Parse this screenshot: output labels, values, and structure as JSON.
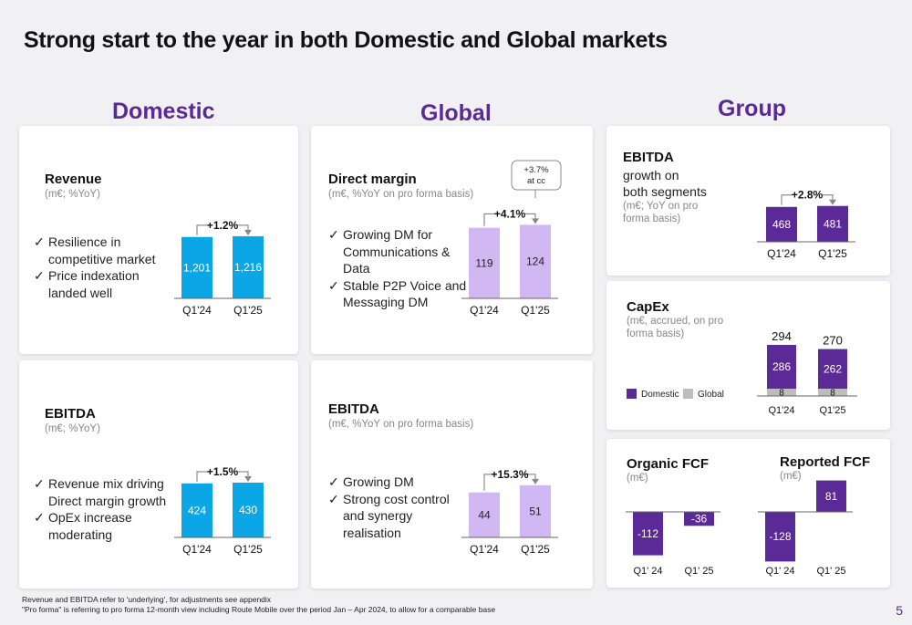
{
  "page": {
    "title": "Strong start to the year in both Domestic and Global markets",
    "page_number": "5"
  },
  "sections": {
    "domestic": "Domestic",
    "global": "Global",
    "group": "Group"
  },
  "colors": {
    "domestic": "#0aa6e6",
    "global": "#d2b8f2",
    "group": "#5b2a96",
    "capex_global": "#bdbdbd",
    "axis": "#666666"
  },
  "dom_rev": {
    "heading": "Revenue",
    "subheading": "(m€; %YoY)",
    "bullets": [
      "Resilience in competitive market",
      "Price indexation landed well"
    ],
    "growth": "+1.2%",
    "chart_data": {
      "type": "bar",
      "categories": [
        "Q1'24",
        "Q1'25"
      ],
      "values": [
        1201,
        1216
      ],
      "value_labels": [
        "1,201",
        "1,216"
      ],
      "ylim": [
        0,
        1500
      ]
    }
  },
  "dom_ebitda": {
    "heading": "EBITDA",
    "subheading": "(m€; %YoY)",
    "bullets": [
      "Revenue mix driving Direct margin growth",
      "OpEx increase moderating"
    ],
    "growth": "+1.5%",
    "chart_data": {
      "type": "bar",
      "categories": [
        "Q1'24",
        "Q1'25"
      ],
      "values": [
        424,
        430
      ],
      "value_labels": [
        "424",
        "430"
      ],
      "ylim": [
        0,
        530
      ]
    }
  },
  "glob_dm": {
    "heading": "Direct margin",
    "subheading": "(m€, %YoY on pro forma basis)",
    "bullets": [
      "Growing DM for Communications & Data",
      "Stable P2P Voice and Messaging DM"
    ],
    "growth": "+4.1%",
    "callout_line1": "+3.7%",
    "callout_line2": "at cc",
    "chart_data": {
      "type": "bar",
      "categories": [
        "Q1'24",
        "Q1'25"
      ],
      "values": [
        119,
        124
      ],
      "value_labels": [
        "119",
        "124"
      ],
      "ylim": [
        0,
        160
      ]
    }
  },
  "glob_ebitda": {
    "heading": "EBITDA",
    "subheading": "(m€, %YoY on pro forma basis)",
    "bullets": [
      "Growing DM",
      "Strong cost control and synergy realisation"
    ],
    "growth": "+15.3%",
    "chart_data": {
      "type": "bar",
      "categories": [
        "Q1'24",
        "Q1'25"
      ],
      "values": [
        44,
        51
      ],
      "value_labels": [
        "44",
        "51"
      ],
      "ylim": [
        0,
        66
      ]
    }
  },
  "grp_ebitda": {
    "heading": "EBITDA",
    "text1": "growth on",
    "text2": "both segments",
    "subheading": "(m€; YoY on pro forma basis)",
    "growth": "+2.8%",
    "chart_data": {
      "type": "bar",
      "categories": [
        "Q1'24",
        "Q1'25"
      ],
      "values": [
        468,
        481
      ],
      "value_labels": [
        "468",
        "481"
      ],
      "ylim": [
        0,
        600
      ]
    }
  },
  "capex": {
    "heading": "CapEx",
    "subheading": "(m€, accrued, on pro forma basis)",
    "legend_domestic": "Domestic",
    "legend_global": "Global",
    "chart_data": {
      "type": "bar",
      "stacked": true,
      "categories": [
        "Q1'24",
        "Q1'25"
      ],
      "series": [
        {
          "name": "Domestic",
          "values": [
            286,
            262
          ]
        },
        {
          "name": "Global",
          "values": [
            8,
            8
          ]
        }
      ],
      "totals": [
        294,
        270
      ],
      "ylim": [
        0,
        380
      ]
    }
  },
  "fcf": {
    "organic_heading": "Organic FCF",
    "organic_sub": "(m€)",
    "reported_heading": "Reported FCF",
    "reported_sub": "(m€)",
    "organic_chart": {
      "type": "bar",
      "categories": [
        "Q1' 24",
        "Q1' 25"
      ],
      "values": [
        -112,
        -36
      ],
      "value_labels": [
        "-112",
        "-36"
      ]
    },
    "reported_chart": {
      "type": "bar",
      "categories": [
        "Q1' 24",
        "Q1' 25"
      ],
      "values": [
        -128,
        81
      ],
      "value_labels": [
        "-128",
        "81"
      ]
    }
  },
  "footnotes": [
    "Revenue and EBITDA refer to 'underlying', for adjustments see appendix",
    "\"Pro forma\" is referring to pro forma 12-month view including Route Mobile over the period Jan – Apr 2024, to allow for a comparable base"
  ]
}
